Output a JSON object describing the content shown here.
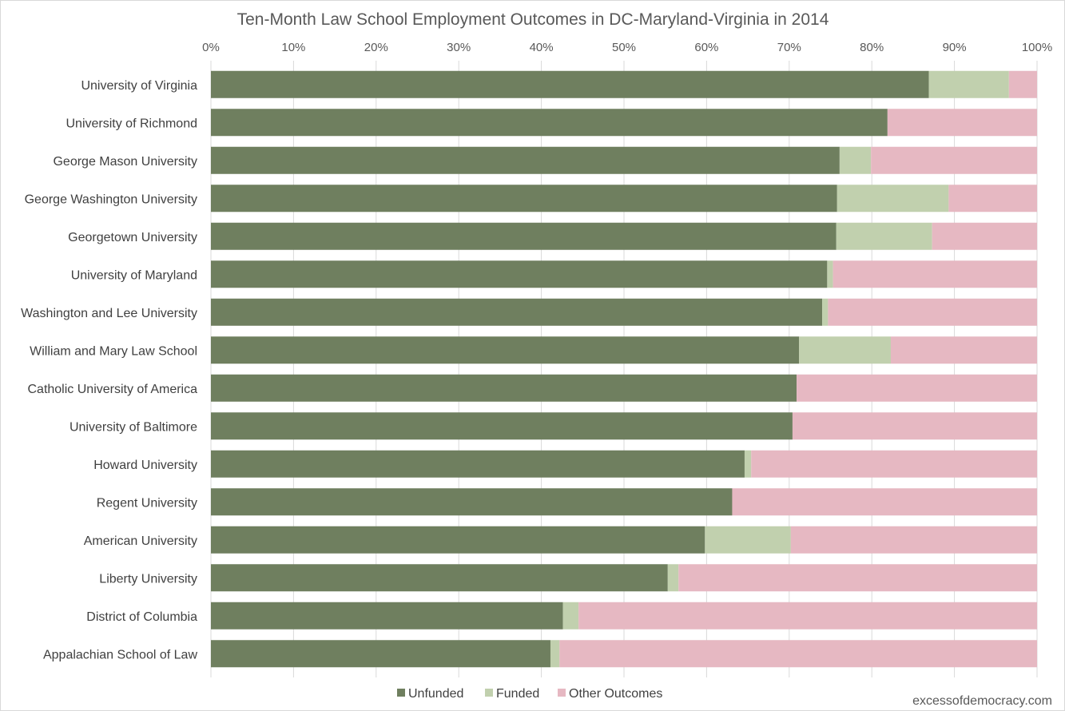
{
  "chart_data": {
    "type": "bar",
    "orientation": "horizontal",
    "stacked": "percent",
    "title": "Ten-Month Law School Employment Outcomes in DC-Maryland-Virginia in 2014",
    "xlabel": "",
    "ylabel": "",
    "xlim": [
      0,
      100
    ],
    "x_ticks": [
      "0%",
      "10%",
      "20%",
      "30%",
      "40%",
      "50%",
      "60%",
      "70%",
      "80%",
      "90%",
      "100%"
    ],
    "x_axis_position": "top",
    "grid": true,
    "legend_position": "bottom",
    "categories": [
      "University of Virginia",
      "University of Richmond",
      "George Mason University",
      "George Washington University",
      "Georgetown University",
      "University of Maryland",
      "Washington and Lee University",
      "William and Mary Law School",
      "Catholic University of America",
      "University of Baltimore",
      "Howard University",
      "Regent University",
      "American University",
      "Liberty University",
      "District of Columbia",
      "Appalachian School of Law"
    ],
    "series": [
      {
        "name": "Unfunded",
        "color": "#6f7f5f",
        "values": [
          86.9,
          81.9,
          76.1,
          75.8,
          75.7,
          74.6,
          74.0,
          71.2,
          70.9,
          70.4,
          64.6,
          63.1,
          59.8,
          55.3,
          42.6,
          41.1
        ]
      },
      {
        "name": "Funded",
        "color": "#c1d0ae",
        "values": [
          9.7,
          0.0,
          3.8,
          13.5,
          11.6,
          0.7,
          0.7,
          11.1,
          0.0,
          0.0,
          0.8,
          0.0,
          10.4,
          1.3,
          1.9,
          1.1
        ]
      },
      {
        "name": "Other Outcomes",
        "color": "#e6b8c2",
        "values": [
          3.4,
          18.1,
          20.1,
          10.7,
          12.7,
          24.7,
          25.3,
          17.7,
          29.1,
          29.6,
          34.6,
          36.9,
          29.8,
          43.4,
          55.5,
          57.8
        ]
      }
    ]
  },
  "credit": "excessofdemocracy.com",
  "colors": {
    "gridline": "#d9d9d9",
    "axis_text": "#595959",
    "category_text": "#404040"
  }
}
